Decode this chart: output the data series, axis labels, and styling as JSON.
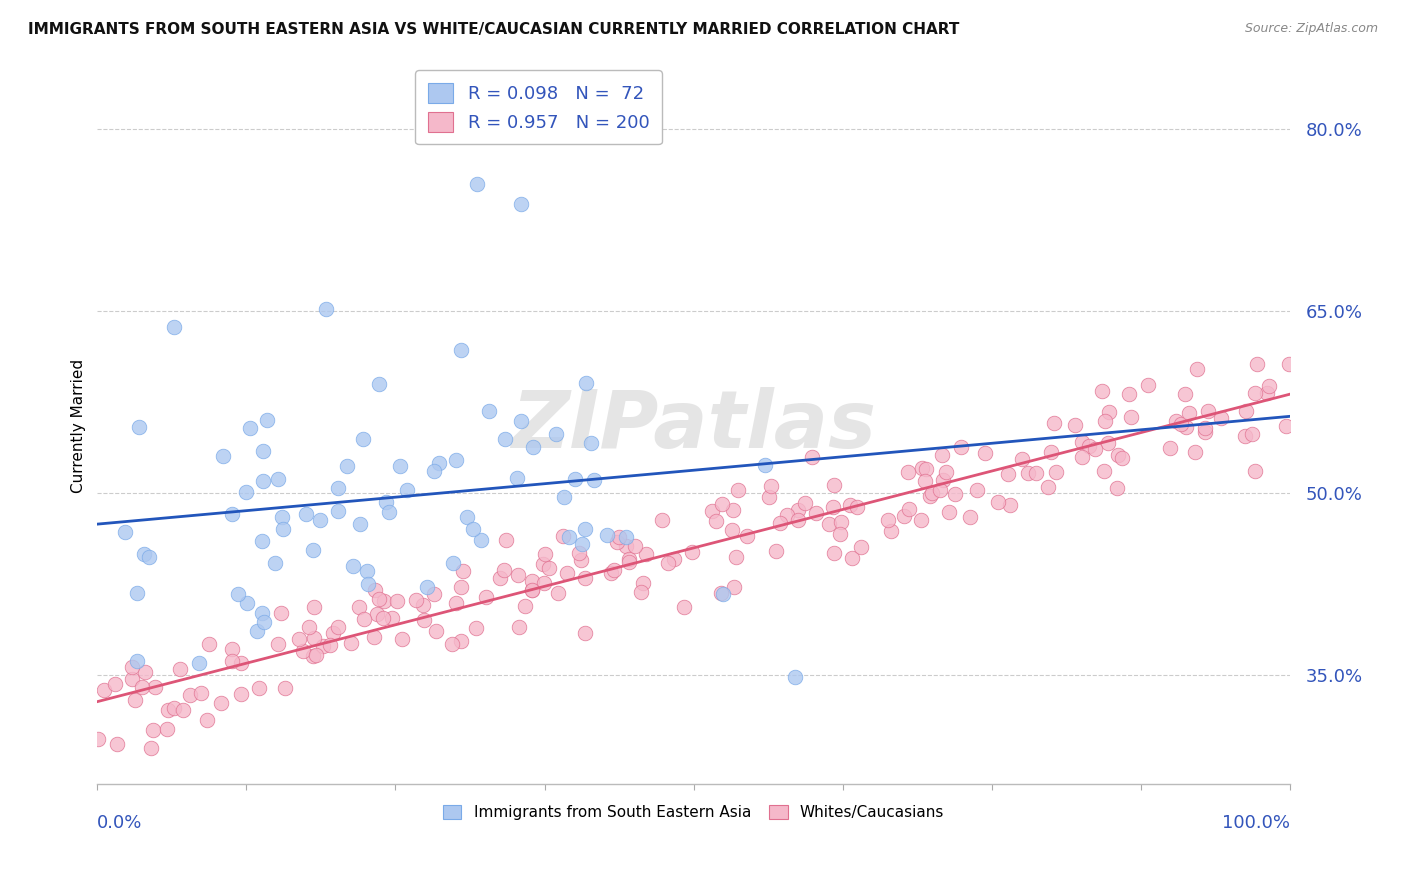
{
  "title": "IMMIGRANTS FROM SOUTH EASTERN ASIA VS WHITE/CAUCASIAN CURRENTLY MARRIED CORRELATION CHART",
  "source": "Source: ZipAtlas.com",
  "ylabel": "Currently Married",
  "series": [
    {
      "name": "Immigrants from South Eastern Asia",
      "R": 0.098,
      "N": 72,
      "color": "#adc8f0",
      "edge_color": "#7aaae8",
      "line_color": "#2255bb",
      "line_style": "-"
    },
    {
      "name": "Whites/Caucasians",
      "R": 0.957,
      "N": 200,
      "color": "#f5b8ca",
      "edge_color": "#e07090",
      "line_color": "#dd5577",
      "line_style": "-"
    }
  ],
  "yticks": [
    0.35,
    0.5,
    0.65,
    0.8
  ],
  "ytick_labels": [
    "35.0%",
    "50.0%",
    "65.0%",
    "80.0%"
  ],
  "xlim": [
    0.0,
    1.0
  ],
  "ylim": [
    0.26,
    0.85
  ],
  "background_color": "#ffffff",
  "grid_color": "#cccccc",
  "watermark": "ZIPatlas",
  "title_fontsize": 11,
  "source_fontsize": 9,
  "legend_fontsize": 13,
  "blue_intercept": 0.476,
  "blue_slope": 0.054,
  "pink_intercept": 0.325,
  "pink_slope": 0.255
}
